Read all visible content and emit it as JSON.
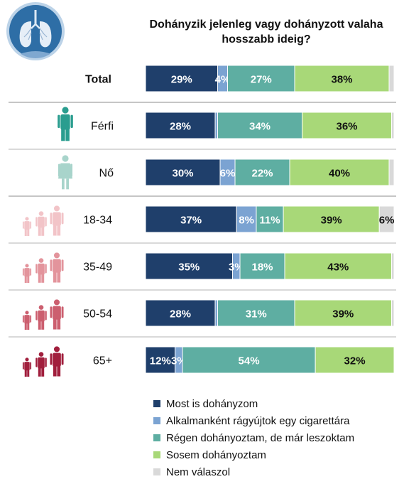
{
  "chart_data": {
    "type": "bar",
    "orientation": "horizontal",
    "stacked": true,
    "title": "Dohányzik jelenleg vagy dohányzott valaha hosszabb ideig?",
    "categories": [
      "Total",
      "Férfi",
      "Nő",
      "18-34",
      "35-49",
      "50-54",
      "65+"
    ],
    "series": [
      {
        "name": "Most is dohányzom",
        "color": "#1f3f6b",
        "values": [
          29,
          28,
          30,
          37,
          35,
          28,
          12
        ],
        "labels": [
          "29%",
          "28%",
          "30%",
          "37%",
          "35%",
          "28%",
          "12%"
        ]
      },
      {
        "name": "Alkalmanként rágyújtok egy cigarettára",
        "color": "#7ba3d2",
        "values": [
          4,
          1,
          6,
          8,
          3,
          1,
          3
        ],
        "labels": [
          "4%",
          "",
          "6%",
          "8%",
          "3%",
          "",
          "3%"
        ]
      },
      {
        "name": "Régen dohányoztam, de már leszoktam",
        "color": "#5eaea2",
        "values": [
          27,
          34,
          22,
          11,
          18,
          31,
          54
        ],
        "labels": [
          "27%",
          "34%",
          "22%",
          "11%",
          "18%",
          "31%",
          "54%"
        ]
      },
      {
        "name": "Sosem dohányoztam",
        "color": "#a8d878",
        "values": [
          38,
          36,
          40,
          39,
          43,
          39,
          32
        ],
        "labels": [
          "38%",
          "36%",
          "40%",
          "39%",
          "43%",
          "39%",
          "32%"
        ]
      },
      {
        "name": "Nem válaszol",
        "color": "#d9d9d9",
        "values": [
          2,
          1,
          2,
          6,
          1,
          1,
          0
        ],
        "labels": [
          "",
          "",
          "",
          "6%",
          "",
          "",
          ""
        ]
      }
    ],
    "xlim": [
      0,
      100
    ],
    "legend_position": "bottom",
    "grid": false
  },
  "colors": {
    "separator": "#b3b3b3",
    "male_icon": "#2a9d8f",
    "female_icon": "#a8d4cb",
    "age_icons": [
      "#f2c4c8",
      "#e3949c",
      "#cc5f6f",
      "#a11f3d"
    ],
    "lung_badge": "#2e6ea6"
  },
  "icons": [
    "lungs-icon",
    "male-figure-icon",
    "female-figure-icon",
    "age-group-icon"
  ]
}
